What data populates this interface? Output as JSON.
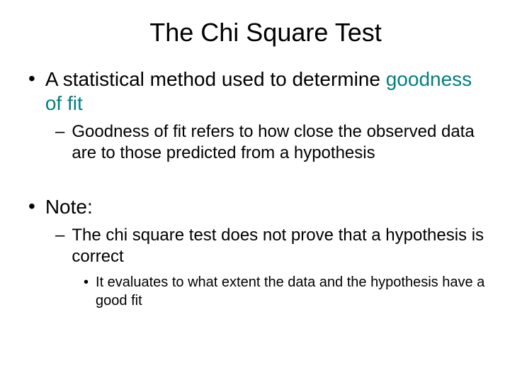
{
  "title": "The Chi Square Test",
  "colors": {
    "teal": "#008080",
    "black": "#000000",
    "background": "#ffffff"
  },
  "typography": {
    "title_fontsize": 36,
    "l1_fontsize": 28,
    "l2_fontsize": 24,
    "l3_fontsize": 20,
    "font_family": "Arial"
  },
  "bullets": {
    "l1a_prefix": "A statistical method used to determine ",
    "l1a_teal": "goodness of fit",
    "l2a": "Goodness of fit refers to how close the observed data are to those predicted from a hypothesis",
    "l1b": "Note:",
    "l2b": "The chi square test does not prove that a hypothesis is correct",
    "l3a": "It evaluates to what extent the data and the hypothesis have a good fit"
  },
  "markers": {
    "dot": "•",
    "dash": "–"
  }
}
